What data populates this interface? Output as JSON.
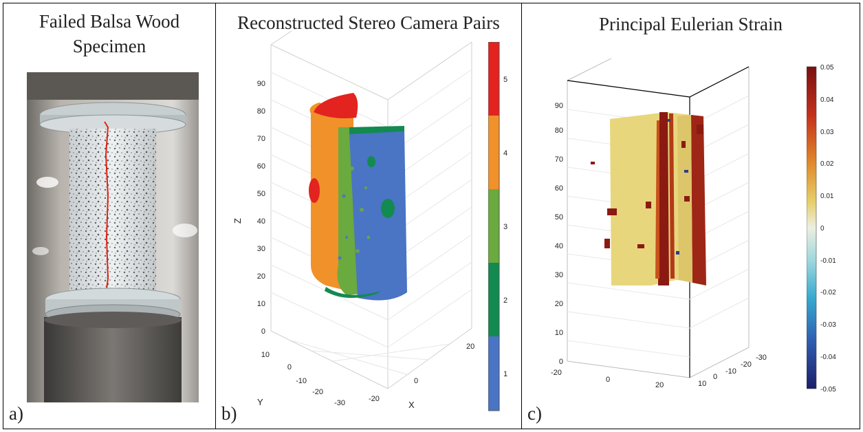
{
  "panel_a": {
    "title_line1": "Failed Balsa Wood",
    "title_line2": "Specimen",
    "label": "a)"
  },
  "panel_b": {
    "title": "Reconstructed Stereo Camera Pairs",
    "label": "b)",
    "z_axis_label": "Z",
    "y_axis_label": "Y",
    "x_axis_label": "X",
    "z_ticks": [
      "0",
      "10",
      "20",
      "30",
      "40",
      "50",
      "60",
      "70",
      "80",
      "90"
    ],
    "y_ticks": [
      "10",
      "0",
      "-10",
      "-20",
      "-30"
    ],
    "x_ticks": [
      "20",
      "0",
      "-20"
    ],
    "colorbar": {
      "ticks": [
        "1",
        "2",
        "3",
        "4",
        "5"
      ],
      "colors": [
        "#4a74c4",
        "#138a50",
        "#6aaa3e",
        "#f1912a",
        "#e2231f"
      ]
    }
  },
  "panel_c": {
    "title": "Principal Eulerian Strain",
    "label": "c)",
    "z_ticks": [
      "0",
      "10",
      "20",
      "30",
      "40",
      "50",
      "60",
      "70",
      "80",
      "90"
    ],
    "x_ticks": [
      "-20",
      "0",
      "20"
    ],
    "y_ticks": [
      "10",
      "0",
      "-10",
      "-20",
      "-30"
    ],
    "colorbar": {
      "ticks": [
        "0.05",
        "0.04",
        "0.03",
        "0.02",
        "0.01",
        "0",
        "-0.01",
        "-0.02",
        "-0.03",
        "-0.04",
        "-0.05"
      ],
      "range": [
        -0.05,
        0.05
      ]
    }
  },
  "colors": {
    "red_series": "#e2231f",
    "orange_series": "#f1912a",
    "light_green_series": "#6aaa3e",
    "dark_green_series": "#138a50",
    "blue_series": "#4a74c4",
    "strain_yellow": "#e8d67c",
    "strain_dark_red": "#8b1a12"
  }
}
